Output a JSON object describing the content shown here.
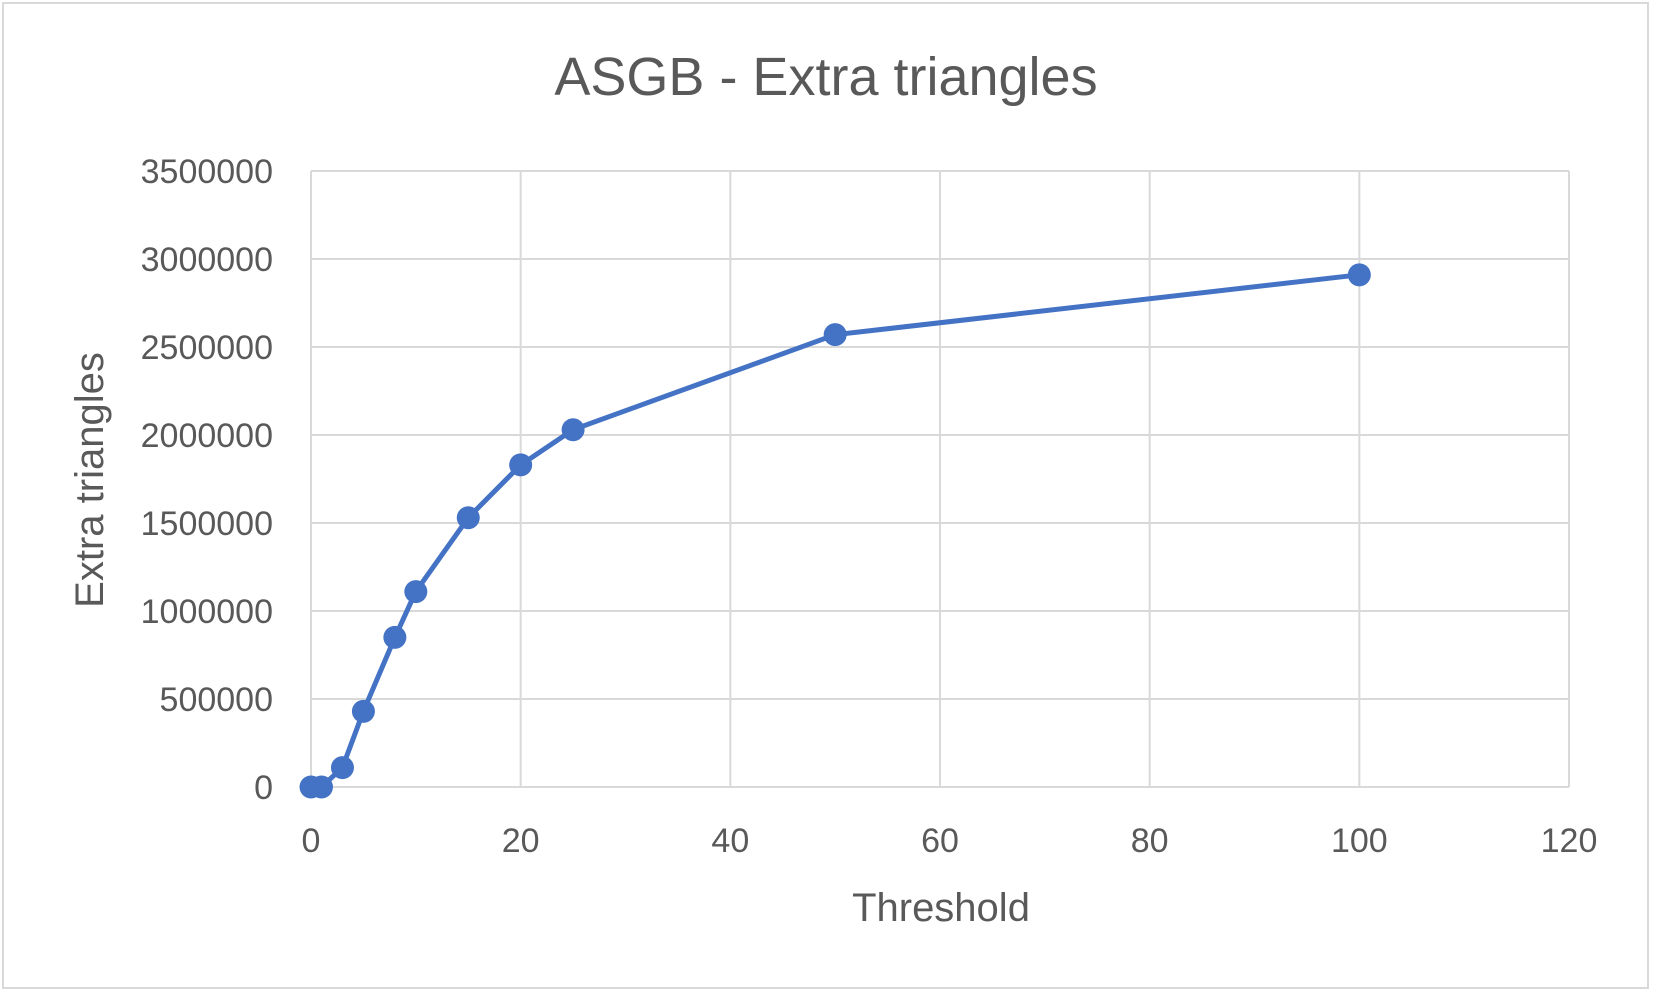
{
  "chart_data": {
    "type": "scatter",
    "title": "ASGB - Extra triangles",
    "xlabel": "Threshold",
    "ylabel": "Extra triangles",
    "xlim": [
      0,
      120
    ],
    "ylim": [
      0,
      3500000
    ],
    "x_ticks": [
      0,
      20,
      40,
      60,
      80,
      100,
      120
    ],
    "y_ticks": [
      0,
      500000,
      1000000,
      1500000,
      2000000,
      2500000,
      3000000,
      3500000
    ],
    "x_tick_labels": [
      "0",
      "20",
      "40",
      "60",
      "80",
      "100",
      "120"
    ],
    "y_tick_labels": [
      "0",
      "500000",
      "1000000",
      "1500000",
      "2000000",
      "2500000",
      "3000000",
      "3500000"
    ],
    "grid": true,
    "legend": "none",
    "series": [
      {
        "color": "#4472c4",
        "markers": true,
        "lines": true,
        "points": [
          {
            "x": 0,
            "y": 0
          },
          {
            "x": 1,
            "y": 0
          },
          {
            "x": 3,
            "y": 110000
          },
          {
            "x": 5,
            "y": 430000
          },
          {
            "x": 8,
            "y": 850000
          },
          {
            "x": 10,
            "y": 1110000
          },
          {
            "x": 15,
            "y": 1530000
          },
          {
            "x": 20,
            "y": 1830000
          },
          {
            "x": 25,
            "y": 2030000
          },
          {
            "x": 50,
            "y": 2570000
          },
          {
            "x": 100,
            "y": 2910000
          }
        ]
      }
    ]
  }
}
